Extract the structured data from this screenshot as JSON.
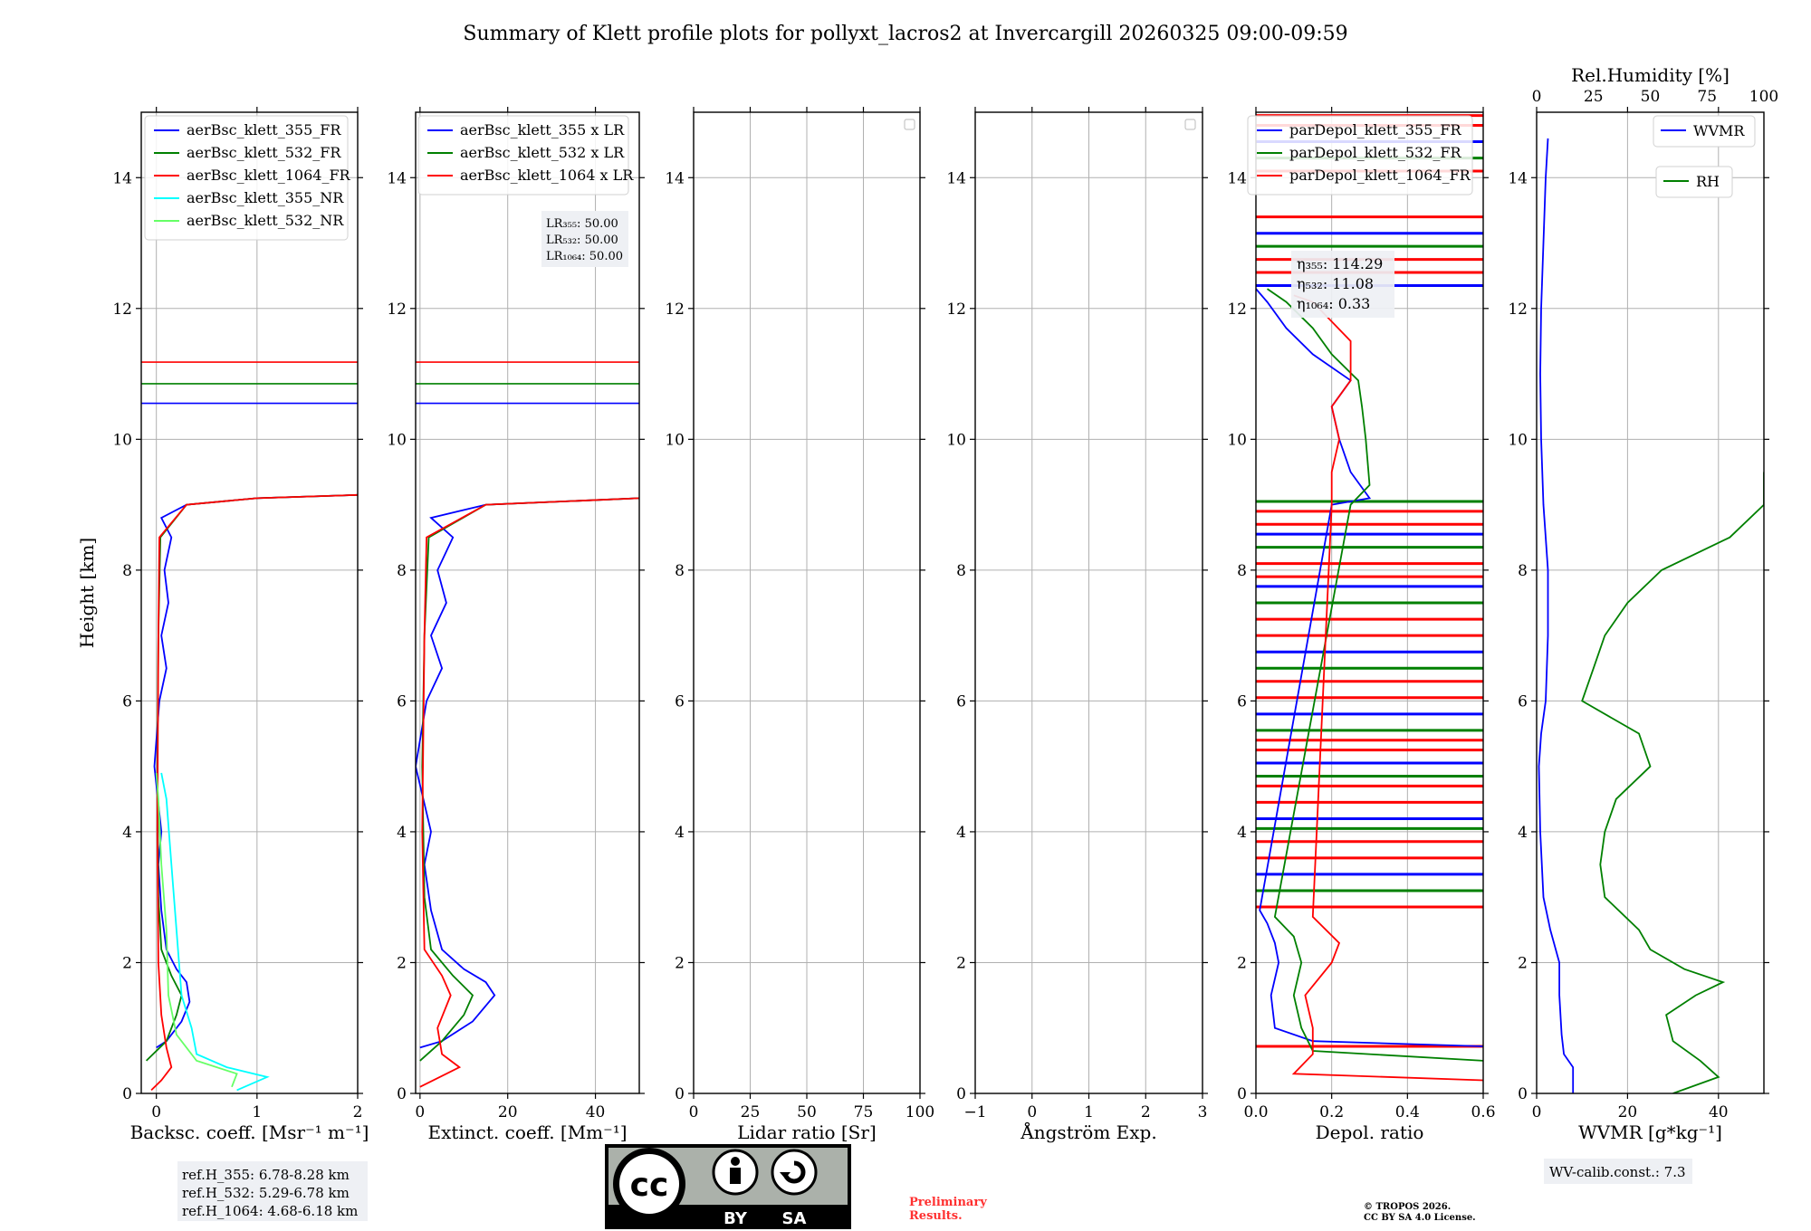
{
  "title": "Summary of Klett profile plots for pollyxt_lacros2 at Invercargill 20260325 09:00-09:59",
  "ylabel": "Height [km]",
  "yticks": [
    "0",
    "2",
    "4",
    "6",
    "8",
    "10",
    "12",
    "14"
  ],
  "colors": {
    "c355": "#0000ff",
    "c532": "#008000",
    "c1064": "#ff0000",
    "c355nr": "#00ffff",
    "c532nr": "#66ff66"
  },
  "chart_data": [
    {
      "type": "line",
      "xlabel": "Backsc. coeff. [Msr⁻¹ m⁻¹]",
      "xlim": [
        -0.15,
        2
      ],
      "xticks": [
        "0",
        "1",
        "2"
      ],
      "ylim": [
        0,
        15
      ],
      "legend": [
        "aerBsc_klett_355_FR",
        "aerBsc_klett_532_FR",
        "aerBsc_klett_1064_FR",
        "aerBsc_klett_355_NR",
        "aerBsc_klett_532_NR"
      ],
      "reference_lines_km": [
        10.55,
        10.85,
        11.18
      ],
      "series": [
        {
          "name": "aerBsc_klett_355_FR",
          "color": "#0000ff",
          "points": [
            [
              0,
              0.7
            ],
            [
              0.1,
              0.8
            ],
            [
              0.25,
              1.1
            ],
            [
              0.33,
              1.4
            ],
            [
              0.3,
              1.7
            ],
            [
              0.2,
              1.9
            ],
            [
              0.1,
              2.2
            ],
            [
              0.05,
              2.8
            ],
            [
              0.02,
              3.5
            ],
            [
              0.05,
              4
            ],
            [
              -0.02,
              5
            ],
            [
              0.03,
              6
            ],
            [
              0.1,
              6.5
            ],
            [
              0.05,
              7
            ],
            [
              0.12,
              7.5
            ],
            [
              0.08,
              8
            ],
            [
              0.15,
              8.5
            ],
            [
              0.05,
              8.8
            ],
            [
              0.3,
              9.0
            ],
            [
              1.0,
              9.1
            ],
            [
              2,
              9.15
            ]
          ]
        },
        {
          "name": "aerBsc_klett_532_FR",
          "color": "#008000",
          "points": [
            [
              -0.1,
              0.5
            ],
            [
              0.1,
              0.8
            ],
            [
              0.2,
              1.2
            ],
            [
              0.25,
              1.5
            ],
            [
              0.15,
              1.8
            ],
            [
              0.05,
              2.2
            ],
            [
              0.02,
              3
            ],
            [
              0.01,
              5
            ],
            [
              0.02,
              7
            ],
            [
              0.04,
              8.5
            ],
            [
              0.3,
              9.0
            ],
            [
              1.0,
              9.1
            ],
            [
              2,
              9.15
            ]
          ]
        },
        {
          "name": "aerBsc_klett_1064_FR",
          "color": "#ff0000",
          "points": [
            [
              -0.05,
              0.05
            ],
            [
              0.05,
              0.2
            ],
            [
              0.15,
              0.4
            ],
            [
              0.1,
              0.7
            ],
            [
              0.05,
              1.2
            ],
            [
              0.02,
              2
            ],
            [
              0.01,
              4
            ],
            [
              0.02,
              7
            ],
            [
              0.03,
              8.5
            ],
            [
              0.3,
              9.0
            ],
            [
              1.0,
              9.1
            ],
            [
              2,
              9.15
            ]
          ]
        },
        {
          "name": "aerBsc_klett_355_NR",
          "color": "#00ffff",
          "points": [
            [
              0.8,
              0.05
            ],
            [
              1.1,
              0.25
            ],
            [
              0.7,
              0.4
            ],
            [
              0.4,
              0.6
            ],
            [
              0.35,
              1.0
            ],
            [
              0.25,
              1.5
            ],
            [
              0.2,
              2.5
            ],
            [
              0.15,
              3.5
            ],
            [
              0.1,
              4.5
            ],
            [
              0.05,
              4.9
            ]
          ]
        },
        {
          "name": "aerBsc_klett_532_NR",
          "color": "#66ff66",
          "points": [
            [
              0.75,
              0.1
            ],
            [
              0.8,
              0.3
            ],
            [
              0.4,
              0.5
            ],
            [
              0.2,
              0.9
            ],
            [
              0.12,
              1.5
            ],
            [
              0.1,
              2.5
            ],
            [
              0.05,
              3.5
            ],
            [
              0.02,
              4.5
            ],
            [
              0.0,
              4.9
            ]
          ]
        }
      ]
    },
    {
      "type": "line",
      "xlabel": "Extinct. coeff. [Mm⁻¹]",
      "xlim": [
        -1,
        50
      ],
      "xticks": [
        "0",
        "20",
        "40"
      ],
      "ylim": [
        0,
        15
      ],
      "legend": [
        "aerBsc_klett_355 x LR",
        "aerBsc_klett_532 x LR",
        "aerBsc_klett_1064 x LR"
      ],
      "lr_box": [
        "LR₃₅₅: 50.00",
        "LR₅₃₂: 50.00",
        "LR₁₀₆₄: 50.00"
      ],
      "reference_lines_km": [
        10.55,
        10.85,
        11.18
      ],
      "series": [
        {
          "name": "aerBsc_klett_355 x LR",
          "color": "#0000ff",
          "points": [
            [
              0,
              0.7
            ],
            [
              5,
              0.8
            ],
            [
              12,
              1.1
            ],
            [
              17,
              1.5
            ],
            [
              15,
              1.7
            ],
            [
              10,
              1.9
            ],
            [
              5,
              2.2
            ],
            [
              2.5,
              2.8
            ],
            [
              1,
              3.5
            ],
            [
              2.5,
              4
            ],
            [
              -1,
              5
            ],
            [
              1.5,
              6
            ],
            [
              5,
              6.5
            ],
            [
              2.5,
              7
            ],
            [
              6,
              7.5
            ],
            [
              4,
              8
            ],
            [
              7.5,
              8.5
            ],
            [
              2.5,
              8.8
            ],
            [
              15,
              9.0
            ],
            [
              50,
              9.1
            ]
          ]
        },
        {
          "name": "aerBsc_klett_532 x LR",
          "color": "#008000",
          "points": [
            [
              0,
              0.5
            ],
            [
              5,
              0.8
            ],
            [
              10,
              1.2
            ],
            [
              12,
              1.5
            ],
            [
              7.5,
              1.8
            ],
            [
              2.5,
              2.2
            ],
            [
              1,
              3
            ],
            [
              0.5,
              5
            ],
            [
              1,
              7
            ],
            [
              2,
              8.5
            ],
            [
              15,
              9.0
            ],
            [
              50,
              9.1
            ]
          ]
        },
        {
          "name": "aerBsc_klett_1064 x LR",
          "color": "#ff0000",
          "points": [
            [
              0,
              0.1
            ],
            [
              6,
              0.3
            ],
            [
              9,
              0.4
            ],
            [
              5,
              0.6
            ],
            [
              4,
              1.0
            ],
            [
              7,
              1.5
            ],
            [
              5,
              1.8
            ],
            [
              1,
              2.2
            ],
            [
              0.5,
              4
            ],
            [
              1,
              7
            ],
            [
              1.5,
              8.5
            ],
            [
              15,
              9.0
            ],
            [
              50,
              9.1
            ]
          ]
        }
      ]
    },
    {
      "type": "line",
      "xlabel": "Lidar ratio [Sr]",
      "xlim": [
        0,
        100
      ],
      "xticks": [
        "0",
        "25",
        "50",
        "75",
        "100"
      ],
      "ylim": [
        0,
        15
      ],
      "series": []
    },
    {
      "type": "line",
      "xlabel": "Ångström Exp.",
      "xlim": [
        -1,
        3
      ],
      "xticks": [
        "−1",
        "0",
        "1",
        "2",
        "3"
      ],
      "ylim": [
        0,
        15
      ],
      "series": []
    },
    {
      "type": "line",
      "xlabel": "Depol. ratio",
      "xlim": [
        0,
        0.6
      ],
      "xticks": [
        "0.0",
        "0.2",
        "0.4",
        "0.6"
      ],
      "ylim": [
        0,
        15
      ],
      "legend": [
        "parDepol_klett_355_FR",
        "parDepol_klett_532_FR",
        "parDepol_klett_1064_FR"
      ],
      "eta_box": [
        "η₃₅₅: 114.29",
        "η₅₃₂: 11.08",
        "η₁₀₆₄: 0.33"
      ],
      "series": [
        {
          "name": "parDepol_klett_355_FR",
          "color": "#0000ff",
          "points": [
            [
              0.6,
              0.72
            ],
            [
              0.15,
              0.8
            ],
            [
              0.05,
              1.0
            ],
            [
              0.04,
              1.5
            ],
            [
              0.06,
              2.0
            ],
            [
              0.05,
              2.3
            ],
            [
              0.03,
              2.6
            ],
            [
              0.01,
              2.8
            ],
            [
              0.2,
              9.0
            ],
            [
              0.3,
              9.1
            ],
            [
              0.25,
              9.5
            ],
            [
              0.22,
              10
            ],
            [
              0.2,
              10.5
            ],
            [
              0.25,
              10.9
            ],
            [
              0.15,
              11.3
            ],
            [
              0.08,
              11.7
            ],
            [
              0.03,
              12.1
            ],
            [
              0.0,
              12.3
            ]
          ]
        },
        {
          "name": "parDepol_klett_532_FR",
          "color": "#008000",
          "points": [
            [
              0.6,
              0.5
            ],
            [
              0.15,
              0.65
            ],
            [
              0.12,
              1.0
            ],
            [
              0.1,
              1.5
            ],
            [
              0.12,
              2.0
            ],
            [
              0.1,
              2.4
            ],
            [
              0.05,
              2.7
            ],
            [
              0.25,
              9.0
            ],
            [
              0.3,
              9.3
            ],
            [
              0.29,
              10
            ],
            [
              0.28,
              10.5
            ],
            [
              0.27,
              10.9
            ],
            [
              0.2,
              11.3
            ],
            [
              0.15,
              11.7
            ],
            [
              0.08,
              12.1
            ],
            [
              0.03,
              12.3
            ]
          ]
        },
        {
          "name": "parDepol_klett_1064_FR",
          "color": "#ff0000",
          "points": [
            [
              0.6,
              0.2
            ],
            [
              0.1,
              0.3
            ],
            [
              0.15,
              0.6
            ],
            [
              0.15,
              1.0
            ],
            [
              0.13,
              1.5
            ],
            [
              0.2,
              2.0
            ],
            [
              0.22,
              2.3
            ],
            [
              0.15,
              2.7
            ],
            [
              0.2,
              9.0
            ],
            [
              0.2,
              9.5
            ],
            [
              0.22,
              10
            ],
            [
              0.2,
              10.5
            ],
            [
              0.25,
              10.9
            ],
            [
              0.25,
              11.5
            ],
            [
              0.2,
              11.8
            ],
            [
              0.15,
              12.1
            ],
            [
              0.1,
              12.2
            ]
          ]
        }
      ],
      "spike_heights_km": [
        0.72,
        2.85,
        3.1,
        3.35,
        3.6,
        3.85,
        4.05,
        4.2,
        4.45,
        4.7,
        4.85,
        5.05,
        5.25,
        5.4,
        5.55,
        5.8,
        6.05,
        6.3,
        6.5,
        6.75,
        7.0,
        7.25,
        7.5,
        7.75,
        7.9,
        8.1,
        8.35,
        8.55,
        8.7,
        8.9,
        9.05,
        12.35,
        12.55,
        12.75,
        12.95,
        13.15,
        13.4,
        14.1,
        14.3,
        14.55,
        14.8,
        14.95
      ]
    },
    {
      "type": "line",
      "xlabel": "WVMR [g*kg⁻¹]",
      "x2label": "Rel.Humidity [%]",
      "xlim": [
        0,
        50
      ],
      "xticks": [
        "0",
        "20",
        "40"
      ],
      "x2lim": [
        0,
        100
      ],
      "x2ticks": [
        "0",
        "25",
        "50",
        "75",
        "100"
      ],
      "ylim": [
        0,
        15
      ],
      "legend": [
        "WVMR",
        "RH"
      ],
      "wv_calib": "WV-calib.const.: 7.3",
      "series": [
        {
          "name": "WVMR",
          "color": "#0000ff",
          "axis": "bottom",
          "points": [
            [
              8,
              0
            ],
            [
              8,
              0.4
            ],
            [
              6,
              0.6
            ],
            [
              5.5,
              0.9
            ],
            [
              5,
              1.5
            ],
            [
              5,
              2.0
            ],
            [
              3,
              2.5
            ],
            [
              1.5,
              3
            ],
            [
              0.8,
              4
            ],
            [
              0.5,
              5
            ],
            [
              1,
              5.5
            ],
            [
              2,
              6
            ],
            [
              2.5,
              7
            ],
            [
              2.5,
              8
            ],
            [
              1.5,
              9
            ],
            [
              1,
              10
            ],
            [
              0.8,
              11
            ],
            [
              1,
              12
            ],
            [
              1.5,
              13
            ],
            [
              2,
              14
            ],
            [
              2.5,
              14.6
            ]
          ]
        },
        {
          "name": "RH",
          "color": "#008000",
          "axis": "top",
          "points": [
            [
              60,
              0
            ],
            [
              80,
              0.25
            ],
            [
              72,
              0.5
            ],
            [
              60,
              0.8
            ],
            [
              57,
              1.2
            ],
            [
              70,
              1.5
            ],
            [
              82,
              1.7
            ],
            [
              65,
              1.9
            ],
            [
              50,
              2.2
            ],
            [
              45,
              2.5
            ],
            [
              30,
              3
            ],
            [
              28,
              3.5
            ],
            [
              30,
              4
            ],
            [
              35,
              4.5
            ],
            [
              50,
              5
            ],
            [
              45,
              5.5
            ],
            [
              20,
              6
            ],
            [
              25,
              6.5
            ],
            [
              30,
              7
            ],
            [
              40,
              7.5
            ],
            [
              55,
              8
            ],
            [
              85,
              8.5
            ],
            [
              100,
              9
            ],
            [
              100,
              9.5
            ]
          ]
        }
      ]
    }
  ],
  "ref_heights": [
    "ref.H_355: 6.78-8.28 km",
    "ref.H_532: 5.29-6.78 km",
    "ref.H_1064: 4.68-6.18 km"
  ],
  "license": {
    "cc": "cc",
    "by": "BY",
    "sa": "SA"
  },
  "preliminary": [
    "Preliminary",
    "Results."
  ],
  "copyright": [
    "© TROPOS 2026.",
    "CC BY SA 4.0 License."
  ]
}
